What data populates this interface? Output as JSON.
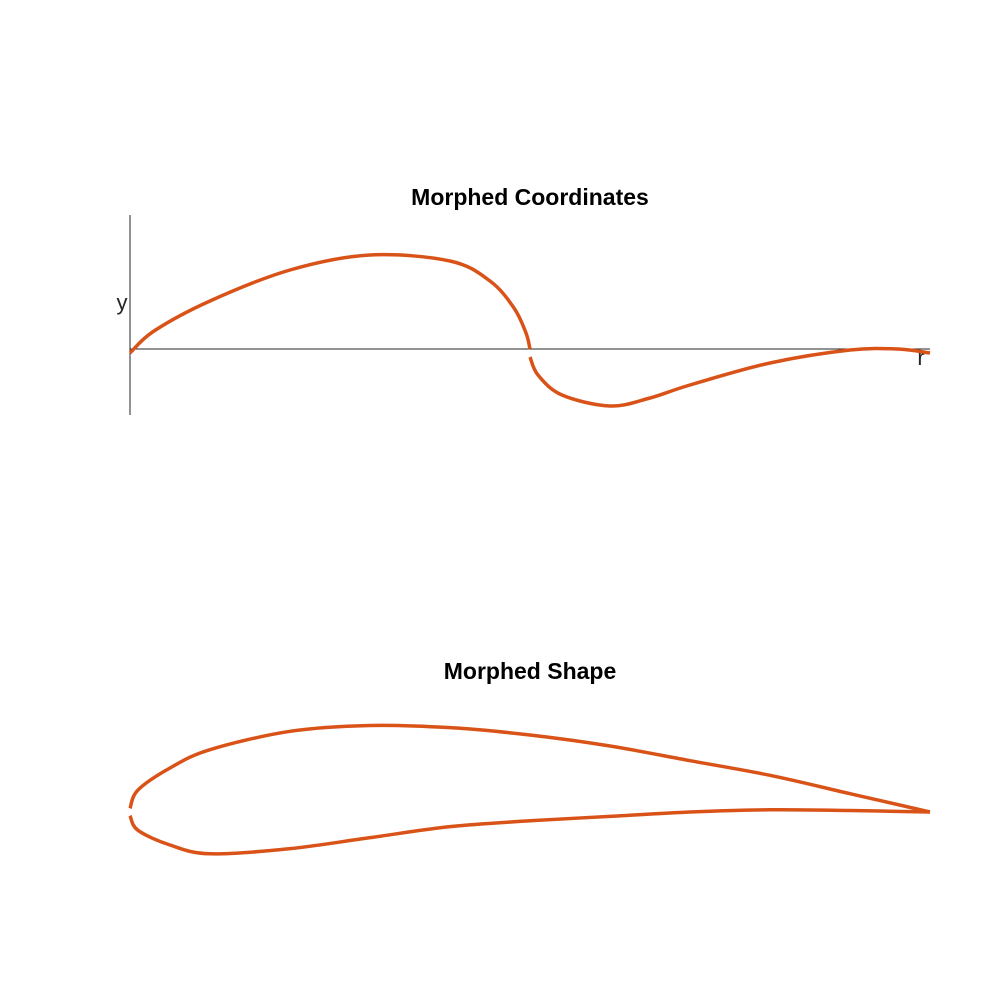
{
  "colors": {
    "curve": "#d95319",
    "axis": "#262626",
    "background": "#ffffff"
  },
  "chart_data": [
    {
      "type": "line",
      "title": "Morphed Coordinates",
      "xlabel": "r",
      "ylabel": "y",
      "grid": false,
      "ticks": false,
      "xlim": [
        0,
        1
      ],
      "ylim": [
        -0.6,
        1.2
      ],
      "series": [
        {
          "segments": [
            {
              "x": [
                0.0,
                0.03,
                0.1,
                0.2,
                0.3,
                0.4,
                0.45,
                0.48,
                0.495,
                0.5
              ],
              "y": [
                0.0,
                0.22,
                0.52,
                0.83,
                0.98,
                0.92,
                0.72,
                0.45,
                0.2,
                0.04
              ]
            },
            {
              "x": [
                0.5,
                0.51,
                0.54,
                0.6,
                0.65,
                0.7,
                0.8,
                0.9,
                0.96,
                1.0
              ],
              "y": [
                -0.04,
                -0.22,
                -0.42,
                -0.53,
                -0.45,
                -0.32,
                -0.1,
                0.03,
                0.04,
                0.0
              ]
            }
          ]
        }
      ]
    },
    {
      "type": "line",
      "title": "Morphed Shape",
      "grid": false,
      "xlim": [
        0,
        1
      ],
      "ylim": [
        -0.12,
        0.15
      ],
      "series": [
        {
          "segments": [
            {
              "x": [
                0.0,
                0.01,
                0.05,
                0.1,
                0.2,
                0.3,
                0.4,
                0.5,
                0.6,
                0.7,
                0.8,
                0.9,
                1.0
              ],
              "y": [
                0.005,
                0.03,
                0.06,
                0.085,
                0.11,
                0.118,
                0.115,
                0.105,
                0.09,
                0.07,
                0.05,
                0.025,
                0.0
              ]
            },
            {
              "x": [
                0.0,
                0.01,
                0.05,
                0.1,
                0.2,
                0.3,
                0.4,
                0.5,
                0.6,
                0.7,
                0.8,
                0.9,
                1.0
              ],
              "y": [
                -0.005,
                -0.025,
                -0.045,
                -0.057,
                -0.05,
                -0.035,
                -0.02,
                -0.012,
                -0.006,
                0.0,
                0.003,
                0.002,
                0.0
              ]
            }
          ]
        }
      ]
    }
  ]
}
